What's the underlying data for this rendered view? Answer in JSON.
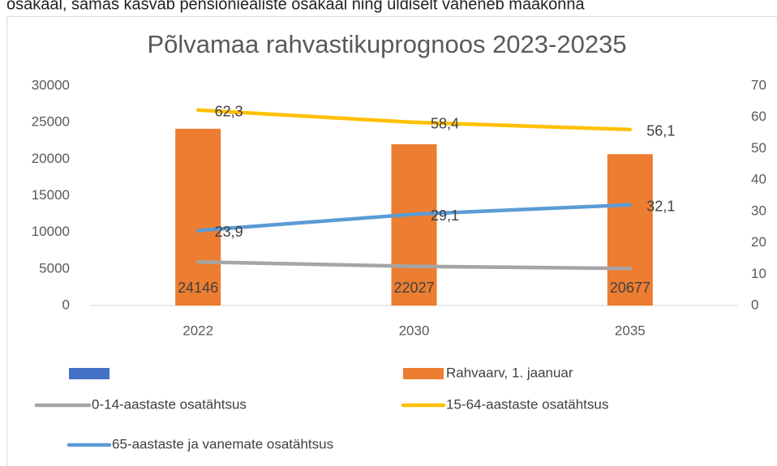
{
  "context_text": "osakaal, samas kasvab pensioniealiste osakaal ning üldiselt väheneb maakonna",
  "chart_data": {
    "type": "bar",
    "title": "Põlvamaa rahvastikuprognoos 2023-20235",
    "categories": [
      "2022",
      "2030",
      "2035"
    ],
    "ylim": [
      0,
      30000
    ],
    "yticks": [
      0,
      5000,
      10000,
      15000,
      20000,
      25000,
      30000
    ],
    "y2lim": [
      0,
      70
    ],
    "y2ticks": [
      0,
      10,
      20,
      30,
      40,
      50,
      60,
      70
    ],
    "grid": false,
    "series": [
      {
        "name": null,
        "type": "bar",
        "color": "#4472c4",
        "values": [
          null,
          null,
          null
        ]
      },
      {
        "name": "Rahvaarv, 1. jaanuar",
        "type": "bar",
        "color": "#ed7d31",
        "values": [
          24146,
          22027,
          20677
        ]
      },
      {
        "name": "0-14-aastaste osatähtsus",
        "type": "line",
        "axis": "y2",
        "color": "#a5a5a5",
        "values": [
          13.9,
          12.5,
          11.8
        ]
      },
      {
        "name": "15-64-aastaste osatähtsus",
        "type": "line",
        "axis": "y2",
        "color": "#ffc000",
        "values": [
          62.3,
          58.4,
          56.1
        ],
        "value_labels": [
          "62,3",
          "58,4",
          "56,1"
        ]
      },
      {
        "name": "65-aastaste ja vanemate osatähtsus",
        "type": "line",
        "axis": "y2",
        "color": "#5b9bd5",
        "values": [
          23.9,
          29.1,
          32.1
        ],
        "value_labels": [
          "23,9",
          "29,1",
          "32,1"
        ]
      }
    ]
  }
}
